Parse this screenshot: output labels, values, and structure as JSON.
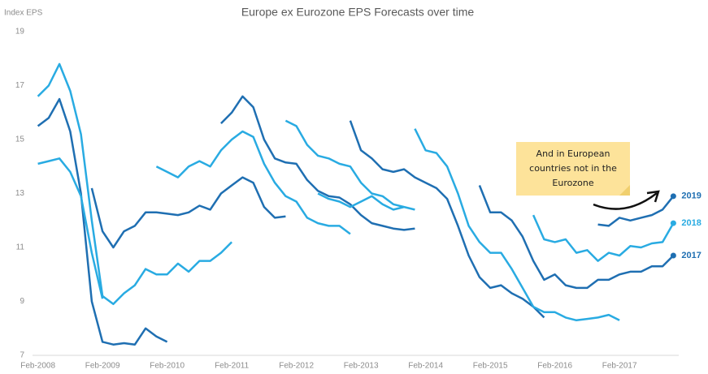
{
  "chart_data": {
    "type": "line",
    "title": "Europe ex Eurozone EPS Forecasts over time",
    "y_label": "Index EPS",
    "annotation": [
      "And in European",
      "countries not in the",
      "Eurozone"
    ],
    "categories": [
      "Feb-2008",
      null,
      null,
      null,
      null,
      null,
      "Feb-2009",
      null,
      null,
      null,
      null,
      null,
      "Feb-2010",
      null,
      null,
      null,
      null,
      null,
      "Feb-2011",
      null,
      null,
      null,
      null,
      null,
      "Feb-2012",
      null,
      null,
      null,
      null,
      null,
      "Feb-2013",
      null,
      null,
      null,
      null,
      null,
      "Feb-2014",
      null,
      null,
      null,
      null,
      null,
      "Feb-2015",
      null,
      null,
      null,
      null,
      null,
      "Feb-2016",
      null,
      null,
      null,
      null,
      null,
      "Feb-2017",
      null,
      null,
      null,
      null,
      null
    ],
    "ylim": [
      7,
      19
    ],
    "yticks": [
      7,
      9,
      11,
      13,
      15,
      17,
      19
    ],
    "grid": false,
    "series": [
      {
        "color": "#1f6fb2",
        "values": [
          15.5,
          15.8,
          16.5,
          15.3,
          13.0,
          9.0,
          7.5,
          7.4,
          7.45,
          7.4,
          8.0,
          7.7,
          7.5,
          null,
          null,
          null,
          null,
          null,
          null,
          null,
          null,
          null,
          null,
          null,
          null,
          null,
          null,
          null,
          null,
          null,
          null,
          null,
          null,
          null,
          null,
          null,
          null,
          null,
          null,
          null,
          null,
          null,
          null,
          null,
          null,
          null,
          null,
          null,
          null,
          null,
          null,
          null,
          null,
          null,
          null,
          null,
          null,
          null,
          null,
          null
        ]
      },
      {
        "color": "#29abe2",
        "values": [
          16.6,
          17.0,
          17.8,
          16.8,
          15.2,
          12.0,
          9.2,
          8.9,
          9.3,
          9.6,
          10.2,
          10.0,
          10.0,
          10.4,
          10.1,
          10.5,
          10.5,
          10.8,
          11.2,
          null,
          null,
          null,
          null,
          null,
          null,
          null,
          null,
          null,
          null,
          null,
          null,
          null,
          null,
          null,
          null,
          null,
          null,
          null,
          null,
          null,
          null,
          null,
          null,
          null,
          null,
          null,
          null,
          null,
          null,
          null,
          null,
          null,
          null,
          null,
          null,
          null,
          null,
          null,
          null,
          null
        ]
      },
      {
        "color": "#29abe2",
        "values": [
          14.1,
          14.2,
          14.3,
          13.8,
          12.9,
          10.8,
          9.1,
          null,
          null,
          null,
          null,
          null,
          null,
          null,
          null,
          null,
          null,
          null,
          null,
          null,
          null,
          null,
          null,
          null,
          null,
          null,
          null,
          null,
          null,
          null,
          null,
          null,
          null,
          null,
          null,
          null,
          null,
          null,
          null,
          null,
          null,
          null,
          null,
          null,
          null,
          null,
          null,
          null,
          null,
          null,
          null,
          null,
          null,
          null,
          null,
          null,
          null,
          null,
          null,
          null
        ]
      },
      {
        "color": "#1f6fb2",
        "values": [
          null,
          null,
          null,
          null,
          null,
          13.2,
          11.6,
          11.0,
          11.6,
          11.8,
          12.3,
          12.3,
          12.25,
          12.2,
          12.3,
          12.55,
          12.4,
          13.0,
          13.3,
          13.6,
          13.4,
          12.5,
          12.1,
          12.15,
          null,
          null,
          null,
          null,
          null,
          null,
          null,
          null,
          null,
          null,
          null,
          null,
          null,
          null,
          null,
          null,
          null,
          null,
          null,
          null,
          null,
          null,
          null,
          null,
          null,
          null,
          null,
          null,
          null,
          null,
          null,
          null,
          null,
          null,
          null,
          null
        ]
      },
      {
        "color": "#29abe2",
        "values": [
          null,
          null,
          null,
          null,
          null,
          null,
          null,
          null,
          null,
          null,
          null,
          14.0,
          13.8,
          13.6,
          14.0,
          14.2,
          14.0,
          14.6,
          15.0,
          15.3,
          15.1,
          14.1,
          13.4,
          12.9,
          12.7,
          12.1,
          11.9,
          11.8,
          11.8,
          11.5,
          null,
          null,
          null,
          null,
          null,
          null,
          null,
          null,
          null,
          null,
          null,
          null,
          null,
          null,
          null,
          null,
          null,
          null,
          null,
          null,
          null,
          null,
          null,
          null,
          null,
          null,
          null,
          null,
          null,
          null
        ]
      },
      {
        "color": "#1f6fb2",
        "values": [
          null,
          null,
          null,
          null,
          null,
          null,
          null,
          null,
          null,
          null,
          null,
          null,
          null,
          null,
          null,
          null,
          null,
          15.6,
          16.0,
          16.6,
          16.2,
          15.0,
          14.3,
          14.15,
          14.1,
          13.5,
          13.1,
          12.9,
          12.85,
          12.6,
          12.2,
          11.9,
          11.8,
          11.7,
          11.65,
          11.7,
          null,
          null,
          null,
          null,
          null,
          null,
          null,
          null,
          null,
          null,
          null,
          null,
          null,
          null,
          null,
          null,
          null,
          null,
          null,
          null,
          null,
          null,
          null,
          null
        ]
      },
      {
        "color": "#29abe2",
        "values": [
          null,
          null,
          null,
          null,
          null,
          null,
          null,
          null,
          null,
          null,
          null,
          null,
          null,
          null,
          null,
          null,
          null,
          null,
          null,
          null,
          null,
          null,
          null,
          15.7,
          15.5,
          14.8,
          14.4,
          14.3,
          14.1,
          14.0,
          13.4,
          13.0,
          12.9,
          12.6,
          12.5,
          12.4,
          null,
          null,
          null,
          null,
          null,
          null,
          null,
          null,
          null,
          null,
          null,
          null,
          null,
          null,
          null,
          null,
          null,
          null,
          null,
          null,
          null,
          null,
          null,
          null
        ]
      },
      {
        "color": "#29abe2",
        "values": [
          null,
          null,
          null,
          null,
          null,
          null,
          null,
          null,
          null,
          null,
          null,
          null,
          null,
          null,
          null,
          null,
          null,
          null,
          null,
          null,
          null,
          null,
          null,
          null,
          null,
          null,
          13.0,
          12.8,
          12.7,
          12.5,
          12.7,
          12.9,
          12.6,
          12.4,
          12.5,
          null,
          null,
          null,
          null,
          null,
          null,
          null,
          null,
          null,
          null,
          null,
          null,
          null,
          null,
          null,
          null,
          null,
          null,
          null,
          null,
          null,
          null,
          null,
          null,
          null
        ]
      },
      {
        "color": "#1f6fb2",
        "values": [
          null,
          null,
          null,
          null,
          null,
          null,
          null,
          null,
          null,
          null,
          null,
          null,
          null,
          null,
          null,
          null,
          null,
          null,
          null,
          null,
          null,
          null,
          null,
          null,
          null,
          null,
          null,
          null,
          null,
          15.7,
          14.6,
          14.3,
          13.9,
          13.8,
          13.9,
          13.6,
          13.4,
          13.2,
          12.8,
          11.8,
          10.7,
          9.9,
          9.5,
          9.6,
          9.3,
          9.1,
          8.8,
          8.4,
          null,
          null,
          null,
          null,
          null,
          null,
          null,
          null,
          null,
          null,
          null,
          null
        ]
      },
      {
        "color": "#29abe2",
        "values": [
          null,
          null,
          null,
          null,
          null,
          null,
          null,
          null,
          null,
          null,
          null,
          null,
          null,
          null,
          null,
          null,
          null,
          null,
          null,
          null,
          null,
          null,
          null,
          null,
          null,
          null,
          null,
          null,
          null,
          null,
          null,
          null,
          null,
          null,
          null,
          15.4,
          14.6,
          14.5,
          14.0,
          13.0,
          11.8,
          11.2,
          10.8,
          10.8,
          10.2,
          9.5,
          8.8,
          8.6,
          8.6,
          8.4,
          8.3,
          8.35,
          8.4,
          8.5,
          8.3,
          null,
          null,
          null,
          null,
          null
        ]
      },
      {
        "name": "2017",
        "color": "#1f6fb2",
        "values": [
          null,
          null,
          null,
          null,
          null,
          null,
          null,
          null,
          null,
          null,
          null,
          null,
          null,
          null,
          null,
          null,
          null,
          null,
          null,
          null,
          null,
          null,
          null,
          null,
          null,
          null,
          null,
          null,
          null,
          null,
          null,
          null,
          null,
          null,
          null,
          null,
          null,
          null,
          null,
          null,
          null,
          13.3,
          12.3,
          12.3,
          12.0,
          11.4,
          10.5,
          9.8,
          10.0,
          9.6,
          9.5,
          9.5,
          9.8,
          9.8,
          10.0,
          10.1,
          10.1,
          10.3,
          10.3,
          10.7
        ]
      },
      {
        "name": "2018",
        "color": "#29abe2",
        "values": [
          null,
          null,
          null,
          null,
          null,
          null,
          null,
          null,
          null,
          null,
          null,
          null,
          null,
          null,
          null,
          null,
          null,
          null,
          null,
          null,
          null,
          null,
          null,
          null,
          null,
          null,
          null,
          null,
          null,
          null,
          null,
          null,
          null,
          null,
          null,
          null,
          null,
          null,
          null,
          null,
          null,
          null,
          null,
          null,
          null,
          null,
          12.2,
          11.3,
          11.2,
          11.3,
          10.8,
          10.9,
          10.5,
          10.8,
          10.7,
          11.05,
          11.0,
          11.15,
          11.2,
          11.9
        ]
      },
      {
        "name": "2019",
        "color": "#1f6fb2",
        "values": [
          null,
          null,
          null,
          null,
          null,
          null,
          null,
          null,
          null,
          null,
          null,
          null,
          null,
          null,
          null,
          null,
          null,
          null,
          null,
          null,
          null,
          null,
          null,
          null,
          null,
          null,
          null,
          null,
          null,
          null,
          null,
          null,
          null,
          null,
          null,
          null,
          null,
          null,
          null,
          null,
          null,
          null,
          null,
          null,
          null,
          null,
          null,
          null,
          null,
          null,
          null,
          null,
          11.85,
          11.8,
          12.1,
          12.0,
          12.1,
          12.2,
          12.4,
          12.9
        ]
      }
    ]
  }
}
